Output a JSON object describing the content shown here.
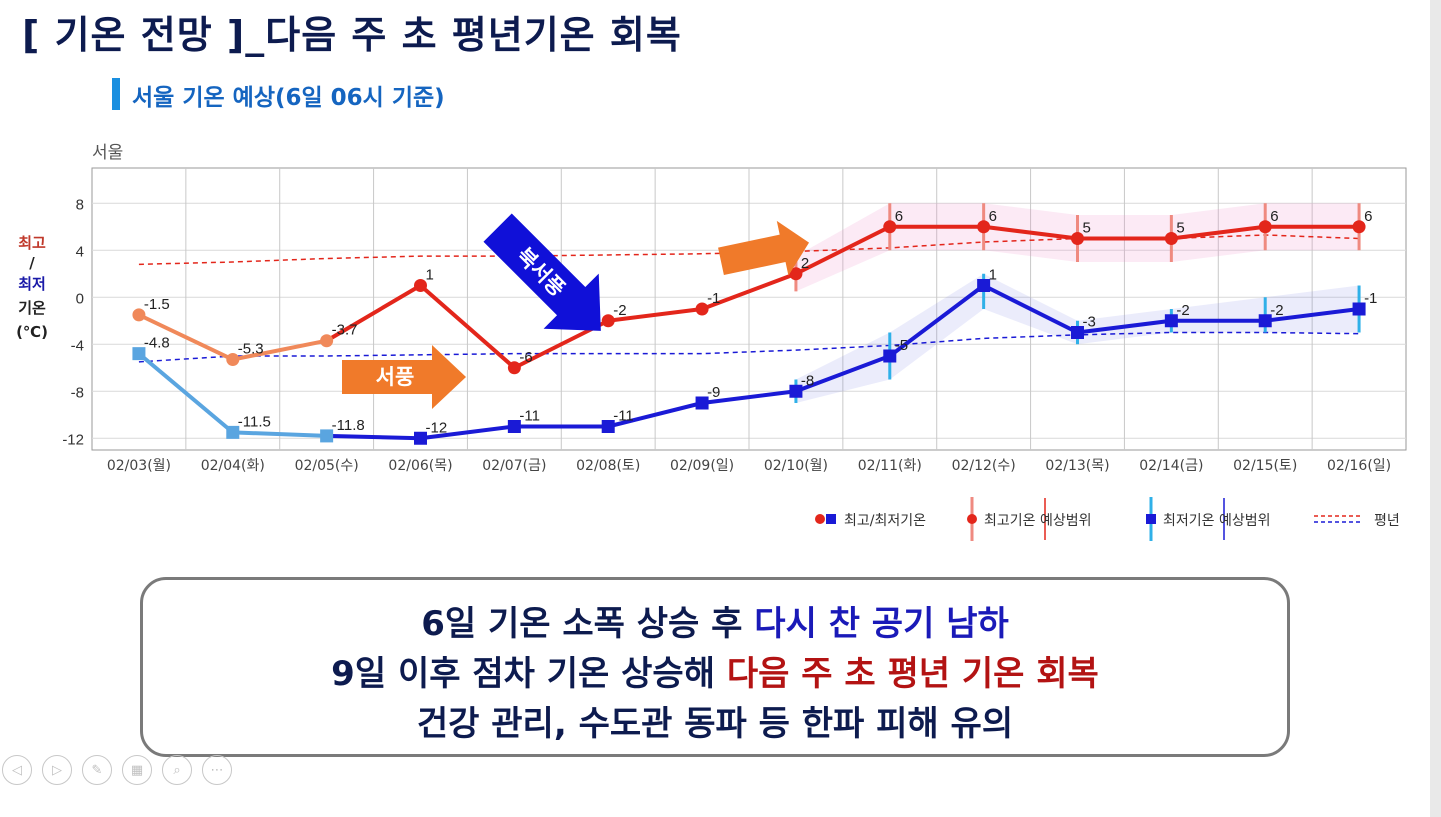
{
  "title": "[ 기온 전망 ]_다음 주 초 평년기온 회복",
  "subtitle": "서울 기온 예상(6일 06시 기준)",
  "chart_data": {
    "type": "line",
    "region_label": "서울",
    "ylabel": [
      "최고",
      "/",
      "최저",
      "기온",
      "(℃)"
    ],
    "ylim": [
      -13,
      11
    ],
    "yticks": [
      8,
      4,
      0,
      -4,
      -8,
      -12
    ],
    "categories": [
      "02/03(월)",
      "02/04(화)",
      "02/05(수)",
      "02/06(목)",
      "02/07(금)",
      "02/08(토)",
      "02/09(일)",
      "02/10(월)",
      "02/11(화)",
      "02/12(수)",
      "02/13(목)",
      "02/14(금)",
      "02/15(토)",
      "02/16(일)"
    ],
    "series": [
      {
        "name": "최고기온",
        "values": [
          -1.5,
          -5.3,
          -3.7,
          1,
          -6,
          -2,
          -1,
          2,
          6,
          6,
          5,
          5,
          6,
          6
        ],
        "labels": [
          "-1.5",
          "-5.3",
          "-3.7",
          "1",
          "-6",
          "-2",
          "-1",
          "2",
          "6",
          "6",
          "5",
          "5",
          "6",
          "6"
        ],
        "observed_count": 3,
        "colors": {
          "observed": "#f0895a",
          "forecast": "#e3261b"
        }
      },
      {
        "name": "최저기온",
        "values": [
          -4.8,
          -11.5,
          -11.8,
          -12,
          -11,
          -11,
          -9,
          -8,
          -5,
          1,
          -3,
          -2,
          -2,
          -1
        ],
        "labels": [
          "-4.8",
          "-11.5",
          "-11.8",
          "-12",
          "-11",
          "-11",
          "-9",
          "-8",
          "-5",
          "1",
          "-3",
          "-2",
          "-2",
          "-1"
        ],
        "observed_count": 3,
        "colors": {
          "observed": "#5aa5e0",
          "forecast": "#1a1ad6"
        }
      },
      {
        "name": "평년 최고",
        "values": [
          2.8,
          3.0,
          3.3,
          3.5,
          3.5,
          3.6,
          3.7,
          3.9,
          4.2,
          4.7,
          5.0,
          5.0,
          5.3,
          5.0
        ],
        "color": "#e3261b",
        "style": "dashed"
      },
      {
        "name": "평년 최저",
        "values": [
          -5.5,
          -5.0,
          -5.0,
          -4.9,
          -4.8,
          -4.8,
          -4.8,
          -4.5,
          -4.1,
          -3.5,
          -3.2,
          -3.0,
          -3.0,
          -3.1
        ],
        "color": "#1a1ad6",
        "style": "dashed"
      }
    ],
    "ranges": {
      "max": {
        "lo": [
          null,
          null,
          null,
          null,
          null,
          null,
          null,
          0.5,
          4.0,
          4.0,
          3.0,
          3.0,
          4.0,
          4.0
        ],
        "hi": [
          null,
          null,
          null,
          null,
          null,
          null,
          null,
          3.5,
          8.0,
          8.0,
          7.0,
          7.0,
          8.0,
          8.0
        ]
      },
      "min": {
        "lo": [
          null,
          null,
          null,
          null,
          null,
          null,
          null,
          -9,
          -7,
          -1,
          -4,
          -3,
          -3,
          -3
        ],
        "hi": [
          null,
          null,
          null,
          null,
          null,
          null,
          null,
          -7,
          -3,
          2,
          -2,
          -1,
          0,
          1
        ]
      }
    },
    "legend": [
      "최고/최저기온",
      "최고기온 예상범위",
      "최저기온 예상범위",
      "평년"
    ],
    "legend_position": "bottom-right",
    "grid": true,
    "annotations": [
      {
        "text": "서풍",
        "type": "arrow",
        "color": "#f07a2a"
      },
      {
        "text": "북서풍",
        "type": "arrow",
        "color": "#1010d8"
      },
      {
        "text": "",
        "type": "arrow",
        "color": "#f07a2a"
      }
    ]
  },
  "message": {
    "line1": {
      "a": "6일 기온 소폭 상승 후 ",
      "b": "다시 찬 공기 남하"
    },
    "line2": {
      "a": "9일 이후 점차 기온 상승해 ",
      "b": "다음 주 초 평년 기온 회복"
    },
    "line3": "건강 관리, 수도관 동파 등 한파 피해 유의"
  },
  "player_controls": [
    {
      "icon": "previous-icon",
      "glyph": "◁"
    },
    {
      "icon": "next-icon",
      "glyph": "▷"
    },
    {
      "icon": "pen-icon",
      "glyph": "✎"
    },
    {
      "icon": "slides-icon",
      "glyph": "▦"
    },
    {
      "icon": "zoom-icon",
      "glyph": "⌕"
    },
    {
      "icon": "more-icon",
      "glyph": "⋯"
    }
  ]
}
